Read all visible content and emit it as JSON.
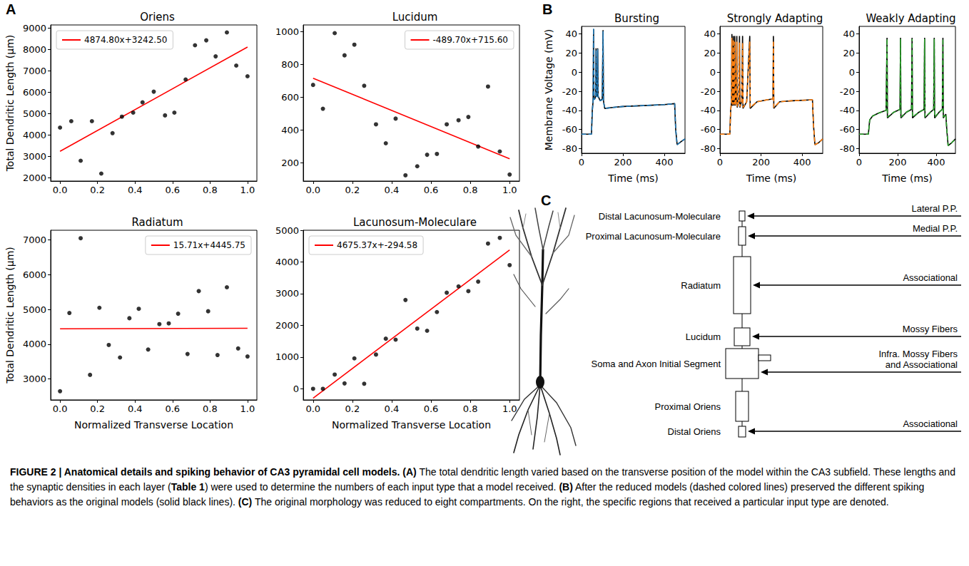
{
  "panel_labels": [
    "A",
    "B",
    "C"
  ],
  "chart_data": [
    {
      "type": "scatter",
      "title": "Oriens",
      "ylabel": "Total Dendritic Length (μm)",
      "xlim": [
        -0.05,
        1.05
      ],
      "xticks": [
        {
          "value": 0,
          "label": "0.0"
        },
        {
          "value": 0.2,
          "label": "0.2"
        },
        {
          "value": 0.4,
          "label": "0.4"
        },
        {
          "value": 0.6,
          "label": "0.6"
        },
        {
          "value": 0.8,
          "label": "0.8"
        },
        {
          "value": 1,
          "label": "1.0"
        }
      ],
      "ylim": [
        1850,
        9150
      ],
      "yticks": [
        2000,
        3000,
        4000,
        5000,
        6000,
        7000,
        8000,
        9000
      ],
      "grid": false,
      "legend": "upper left",
      "series": [
        {
          "type": "scatter",
          "color": "#000000",
          "marker": "circle",
          "x": [
            0,
            0.06,
            0.11,
            0.17,
            0.22,
            0.28,
            0.33,
            0.39,
            0.44,
            0.5,
            0.56,
            0.61,
            0.67,
            0.72,
            0.78,
            0.83,
            0.89,
            0.94,
            1.0
          ],
          "values": [
            4350,
            4650,
            2800,
            4650,
            2200,
            4090,
            4860,
            5050,
            5530,
            6030,
            4920,
            5050,
            6600,
            8200,
            8430,
            7680,
            8800,
            7250,
            6750
          ]
        },
        {
          "name": "4874.80x+3242.50",
          "type": "line",
          "color": "#ff0000",
          "line_style": "solid",
          "x": [
            0,
            1
          ],
          "values": [
            3242.5,
            8117.3
          ]
        }
      ]
    },
    {
      "type": "scatter",
      "title": "Lucidum",
      "xlim": [
        -0.05,
        1.05
      ],
      "xticks": [
        {
          "value": 0,
          "label": "0.0"
        },
        {
          "value": 0.2,
          "label": "0.2"
        },
        {
          "value": 0.4,
          "label": "0.4"
        },
        {
          "value": 0.6,
          "label": "0.6"
        },
        {
          "value": 0.8,
          "label": "0.8"
        },
        {
          "value": 1,
          "label": "1.0"
        }
      ],
      "ylim": [
        90,
        1040
      ],
      "yticks": [
        200,
        400,
        600,
        800,
        1000
      ],
      "grid": false,
      "legend": "upper right",
      "series": [
        {
          "type": "scatter",
          "color": "#000000",
          "marker": "circle",
          "x": [
            0,
            0.05,
            0.11,
            0.16,
            0.21,
            0.26,
            0.32,
            0.37,
            0.42,
            0.47,
            0.53,
            0.58,
            0.63,
            0.68,
            0.74,
            0.79,
            0.84,
            0.89,
            0.95,
            1.0
          ],
          "values": [
            675,
            530,
            990,
            855,
            920,
            670,
            435,
            320,
            470,
            125,
            180,
            250,
            255,
            435,
            460,
            480,
            300,
            665,
            270,
            130
          ]
        },
        {
          "name": "-489.70x+715.60",
          "type": "line",
          "color": "#ff0000",
          "line_style": "solid",
          "x": [
            0,
            1
          ],
          "values": [
            715.6,
            225.9
          ]
        }
      ]
    },
    {
      "type": "scatter",
      "title": "Radiatum",
      "xlabel": "Normalized Transverse Location",
      "ylabel": "Total Dendritic Length (μm)",
      "xlim": [
        -0.05,
        1.05
      ],
      "xticks": [
        {
          "value": 0,
          "label": "0.0"
        },
        {
          "value": 0.2,
          "label": "0.2"
        },
        {
          "value": 0.4,
          "label": "0.4"
        },
        {
          "value": 0.6,
          "label": "0.6"
        },
        {
          "value": 0.8,
          "label": "0.8"
        },
        {
          "value": 1,
          "label": "1.0"
        }
      ],
      "ylim": [
        2400,
        7280
      ],
      "yticks": [
        3000,
        4000,
        5000,
        6000,
        7000
      ],
      "grid": false,
      "legend": "upper right",
      "series": [
        {
          "type": "scatter",
          "color": "#000000",
          "marker": "circle",
          "x": [
            0,
            0.05,
            0.11,
            0.16,
            0.21,
            0.26,
            0.32,
            0.37,
            0.42,
            0.47,
            0.53,
            0.58,
            0.63,
            0.68,
            0.74,
            0.79,
            0.84,
            0.89,
            0.95,
            1.0
          ],
          "values": [
            2650,
            4900,
            7050,
            3120,
            5050,
            3980,
            3620,
            4750,
            5020,
            3850,
            4580,
            4600,
            4880,
            3720,
            5530,
            4950,
            3690,
            5640,
            3880,
            3650
          ]
        },
        {
          "name": "15.71x+4445.75",
          "type": "line",
          "color": "#ff0000",
          "line_style": "solid",
          "x": [
            0,
            1
          ],
          "values": [
            4445.75,
            4461.46
          ]
        }
      ]
    },
    {
      "type": "scatter",
      "title": "Lacunosum-Moleculare",
      "xlabel": "Normalized Transverse Location",
      "xlim": [
        -0.05,
        1.05
      ],
      "xticks": [
        {
          "value": 0,
          "label": "0.0"
        },
        {
          "value": 0.2,
          "label": "0.2"
        },
        {
          "value": 0.4,
          "label": "0.4"
        },
        {
          "value": 0.6,
          "label": "0.6"
        },
        {
          "value": 0.8,
          "label": "0.8"
        },
        {
          "value": 1,
          "label": "1.0"
        }
      ],
      "ylim": [
        -350,
        5000
      ],
      "yticks": [
        0,
        1000,
        2000,
        3000,
        4000,
        5000
      ],
      "grid": false,
      "legend": "upper left",
      "series": [
        {
          "type": "scatter",
          "color": "#000000",
          "marker": "circle",
          "x": [
            0,
            0.05,
            0.11,
            0.16,
            0.21,
            0.26,
            0.32,
            0.37,
            0.42,
            0.47,
            0.53,
            0.58,
            0.63,
            0.68,
            0.74,
            0.79,
            0.84,
            0.89,
            0.95,
            1.0
          ],
          "values": [
            0,
            0,
            450,
            170,
            960,
            160,
            1080,
            1580,
            1550,
            2800,
            1900,
            1830,
            2420,
            3030,
            3230,
            3080,
            3380,
            4580,
            4760,
            3900
          ]
        },
        {
          "name": "4675.37x+-294.58",
          "type": "line",
          "color": "#ff0000",
          "line_style": "solid",
          "x": [
            0,
            1
          ],
          "values": [
            -294.58,
            4380.79
          ]
        }
      ]
    },
    {
      "type": "line",
      "title": "Bursting",
      "xlabel": "Time (ms)",
      "ylabel": "Membrane Voltage (mV)",
      "xlim": [
        0,
        500
      ],
      "xticks": [
        0,
        200,
        400
      ],
      "ylim": [
        -85,
        48
      ],
      "yticks": [
        -80,
        -60,
        -40,
        -20,
        0,
        20,
        40
      ],
      "grid": false,
      "series": [
        {
          "type": "line",
          "color": "#000000",
          "line_style": "solid",
          "x": [
            0,
            48,
            52,
            56,
            58,
            60,
            64,
            68,
            70,
            72,
            76,
            78,
            80,
            90,
            100,
            104,
            106,
            112,
            150,
            200,
            300,
            400,
            450,
            455,
            462,
            480,
            500
          ],
          "values": [
            -65,
            -65,
            -40,
            -30,
            45,
            -28,
            -28,
            -25,
            25,
            -25,
            -25,
            25,
            -25,
            -30,
            -28,
            44,
            -30,
            -38,
            -37,
            -36,
            -35,
            -34,
            -33,
            -60,
            -76,
            -73,
            -70
          ]
        },
        {
          "type": "line",
          "color": "#1f77b4",
          "line_style": "dashed",
          "x": [
            0,
            48,
            52,
            56,
            58,
            60,
            64,
            68,
            70,
            72,
            76,
            78,
            80,
            90,
            100,
            104,
            106,
            112,
            150,
            200,
            300,
            400,
            450,
            455,
            462,
            480,
            500
          ],
          "values": [
            -65,
            -65,
            -41,
            -30,
            46,
            -29,
            -28,
            -26,
            23,
            -26,
            -25,
            24,
            -26,
            -30,
            -29,
            43,
            -31,
            -38,
            -37,
            -36,
            -35,
            -34,
            -33,
            -60,
            -76,
            -73,
            -70
          ]
        }
      ]
    },
    {
      "type": "line",
      "title": "Strongly Adapting",
      "xlabel": "Time (ms)",
      "xlim": [
        0,
        500
      ],
      "xticks": [
        0,
        200,
        400
      ],
      "ylim": [
        -85,
        48
      ],
      "yticks": [
        -80,
        -60,
        -40,
        -20,
        0,
        20,
        40
      ],
      "grid": false,
      "series": [
        {
          "type": "line",
          "color": "#000000",
          "line_style": "solid",
          "x": [
            0,
            48,
            52,
            56,
            58,
            60,
            63,
            65,
            67,
            70,
            72,
            74,
            79,
            82,
            84,
            92,
            95,
            97,
            106,
            110,
            112,
            130,
            145,
            147,
            180,
            230,
            258,
            260,
            262,
            290,
            350,
            450,
            455,
            462,
            480,
            500
          ],
          "values": [
            -65,
            -65,
            -40,
            -32,
            40,
            -35,
            -30,
            38,
            -35,
            -30,
            38,
            -35,
            -30,
            38,
            -37,
            -30,
            38,
            -37,
            -30,
            38,
            -38,
            -31,
            38,
            -38,
            -31,
            -29,
            -28,
            38,
            -38,
            -31,
            -30,
            -29,
            -55,
            -76,
            -74,
            -70
          ]
        },
        {
          "type": "line",
          "color": "#ff7f0e",
          "line_style": "dashed",
          "x": [
            0,
            48,
            52,
            56,
            58,
            60,
            63,
            65,
            67,
            70,
            72,
            74,
            79,
            82,
            84,
            92,
            95,
            97,
            106,
            110,
            112,
            130,
            145,
            147,
            180,
            230,
            258,
            260,
            262,
            290,
            350,
            450,
            455,
            462,
            480,
            500
          ],
          "values": [
            -65,
            -65,
            -40,
            -32,
            36,
            -34,
            -30,
            34,
            -34,
            -30,
            32,
            -35,
            -30,
            32,
            -36,
            -30,
            31,
            -36,
            -30,
            31,
            -37,
            -31,
            32,
            -37,
            -31,
            -29,
            -28,
            33,
            -37,
            -31,
            -30,
            -29,
            -55,
            -76,
            -74,
            -70
          ]
        }
      ]
    },
    {
      "type": "line",
      "title": "Weakly Adapting",
      "xlabel": "Time (ms)",
      "xlim": [
        0,
        500
      ],
      "xticks": [
        0,
        200,
        400
      ],
      "ylim": [
        -85,
        48
      ],
      "yticks": [
        -80,
        -60,
        -40,
        -20,
        0,
        20,
        40
      ],
      "grid": false,
      "series": [
        {
          "type": "line",
          "color": "#000000",
          "line_style": "solid",
          "x": [
            0,
            48,
            55,
            70,
            100,
            140,
            145,
            147,
            180,
            212,
            215,
            217,
            245,
            272,
            275,
            277,
            310,
            337,
            340,
            342,
            370,
            387,
            390,
            392,
            415,
            432,
            435,
            437,
            450,
            455,
            462,
            480,
            500
          ],
          "values": [
            -65,
            -65,
            -50,
            -46,
            -43,
            -40,
            36,
            -48,
            -42,
            -39,
            36,
            -48,
            -42,
            -39,
            36,
            -48,
            -42,
            -39,
            36,
            -48,
            -42,
            -39,
            36,
            -48,
            -42,
            -39,
            36,
            -48,
            -44,
            -60,
            -77,
            -74,
            -70
          ]
        },
        {
          "type": "line",
          "color": "#2ca02c",
          "line_style": "dashed",
          "x": [
            0,
            48,
            55,
            70,
            100,
            140,
            145,
            147,
            180,
            212,
            215,
            217,
            245,
            272,
            275,
            277,
            310,
            337,
            340,
            342,
            370,
            387,
            390,
            392,
            415,
            432,
            435,
            437,
            450,
            455,
            462,
            480,
            500
          ],
          "values": [
            -65,
            -65,
            -50,
            -46,
            -43,
            -40,
            35,
            -47,
            -42,
            -39,
            35,
            -47,
            -42,
            -39,
            35,
            -47,
            -42,
            -39,
            35,
            -47,
            -42,
            -39,
            35,
            -47,
            -42,
            -39,
            35,
            -47,
            -44,
            -60,
            -77,
            -74,
            -70
          ]
        }
      ]
    }
  ],
  "diagram": {
    "compartments": [
      "Distal Lacunosum-Moleculare",
      "Proximal Lacunosum-Moleculare",
      "Radiatum",
      "Lucidum",
      "Soma and Axon Initial Segment",
      "Proximal Oriens",
      "Distal Oriens"
    ],
    "inputs": [
      {
        "lines": [
          "Lateral P.P."
        ]
      },
      {
        "lines": [
          "Medial P.P."
        ]
      },
      {
        "lines": [
          "Associational"
        ]
      },
      {
        "lines": [
          "Mossy Fibers"
        ]
      },
      {
        "lines": [
          "Infra. Mossy Fibers",
          "and Associational"
        ]
      },
      {
        "lines": [
          "Associational"
        ]
      }
    ]
  },
  "caption": [
    {
      "text": "FIGURE 2 | ",
      "bold": true
    },
    {
      "text": "Anatomical details and spiking behavior of CA3 pyramidal cell models. ",
      "bold": true
    },
    {
      "text": "(A)",
      "bold": true
    },
    {
      "text": " The total dendritic length varied based on the transverse position of the model within the CA3 subfield. These lengths and the synaptic densities in each layer (",
      "bold": false
    },
    {
      "text": "Table 1",
      "bold": true
    },
    {
      "text": ") were used to determine the numbers of each input type that a model received. ",
      "bold": false
    },
    {
      "text": "(B)",
      "bold": true
    },
    {
      "text": " After the reduced models (dashed colored lines) preserved the different spiking behaviors as the original models (solid black lines). ",
      "bold": false
    },
    {
      "text": "(C)",
      "bold": true
    },
    {
      "text": " The original morphology was reduced to eight compartments. On the right, the specific regions that received a particular input type are denoted.",
      "bold": false
    }
  ]
}
